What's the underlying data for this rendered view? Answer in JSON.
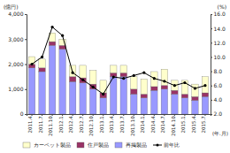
{
  "chart_data": {
    "type": "bar",
    "stacked": true,
    "grid": false,
    "legend": "bottom",
    "y_label": "(億円)",
    "y2_label": "(%)",
    "x_label": "(年.月)",
    "categories": [
      "2011.4",
      "2011.7",
      "2011.10",
      "2012.1",
      "2012.4",
      "2012.7",
      "2012.10",
      "2013.1",
      "2013.4",
      "2013.7",
      "2013.10",
      "2014.1",
      "2014.4",
      "2014.7",
      "2014.10",
      "2015.1",
      "2015.4",
      "2015.7"
    ],
    "ylim": [
      0,
      4000
    ],
    "yticks": [
      0,
      {
        "value": 1000,
        "label": "1,000"
      },
      {
        "value": 2000,
        "label": "2,000"
      },
      {
        "value": 3000,
        "label": "3,000"
      },
      {
        "value": 4000,
        "label": "4,000"
      }
    ],
    "y2lim": [
      2,
      16
    ],
    "y2ticks": [
      {
        "value": 2,
        "label": "2.0"
      },
      {
        "value": 4,
        "label": "4.0"
      },
      {
        "value": 6,
        "label": "6.0"
      },
      {
        "value": 8,
        "label": "8.0"
      },
      {
        "value": 10,
        "label": "10.0"
      },
      {
        "value": 12,
        "label": "12.0"
      },
      {
        "value": 14,
        "label": "14.0"
      },
      {
        "value": 16,
        "label": "16.0"
      }
    ],
    "series": [
      {
        "name": "再掲製品",
        "type": "bar",
        "color": "#9999ff",
        "values": [
          1850,
          1700,
          2750,
          2600,
          1300,
          1250,
          1000,
          650,
          1500,
          1500,
          800,
          650,
          950,
          1000,
          800,
          650,
          550,
          700
        ]
      },
      {
        "name": "住戸製品",
        "type": "bar",
        "color": "#993366",
        "values": [
          150,
          150,
          150,
          150,
          200,
          200,
          200,
          200,
          150,
          150,
          200,
          150,
          150,
          150,
          150,
          150,
          150,
          150
        ]
      },
      {
        "name": "カーペット製品",
        "type": "bar",
        "color": "#ffffcc",
        "values": [
          300,
          350,
          350,
          250,
          450,
          500,
          550,
          500,
          300,
          300,
          500,
          600,
          600,
          650,
          400,
          550,
          500,
          650
        ]
      },
      {
        "name": "前年比",
        "type": "line",
        "axis": "y2",
        "color": "#000000",
        "marker": "circle",
        "values": [
          9.0,
          10.0,
          14.2,
          13.0,
          7.8,
          6.8,
          5.8,
          4.8,
          7.2,
          7.0,
          7.4,
          7.8,
          7.0,
          6.6,
          6.0,
          6.4,
          5.6,
          6.0
        ]
      }
    ]
  }
}
